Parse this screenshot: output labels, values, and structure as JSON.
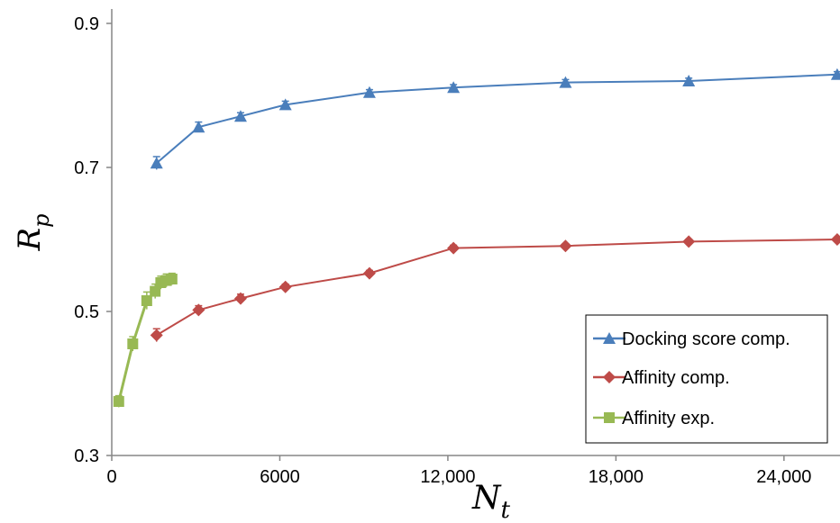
{
  "chart_data": {
    "type": "line",
    "title": "",
    "ylabel": "R",
    "ylabel_sub": "p",
    "xlabel": "N",
    "xlabel_sub": "t",
    "xlim": [
      0,
      26000
    ],
    "ylim": [
      0.3,
      0.92
    ],
    "x_ticks": [
      0,
      6000,
      12000,
      18000,
      24000
    ],
    "x_tick_labels": [
      "0",
      "6000",
      "12,000",
      "18,000",
      "24,000"
    ],
    "y_ticks": [
      0.3,
      0.5,
      0.7,
      0.9
    ],
    "y_tick_labels": [
      "0.3",
      "0.5",
      "0.7",
      "0.9"
    ],
    "grid": false,
    "legend_position": "bottom-right",
    "series": [
      {
        "name": "Docking score comp.",
        "color": "#4a7ebb",
        "marker": "triangle",
        "x": [
          1600,
          3100,
          4600,
          6200,
          9200,
          12200,
          16200,
          20600,
          25900
        ],
        "y": [
          0.706,
          0.756,
          0.771,
          0.787,
          0.804,
          0.811,
          0.818,
          0.82,
          0.829
        ],
        "err": [
          0.009,
          0.007,
          0.005,
          0.005,
          0.004,
          0.004,
          0.004,
          0.004,
          0.004
        ]
      },
      {
        "name": "Affinity comp.",
        "color": "#be4b48",
        "marker": "diamond",
        "x": [
          1600,
          3100,
          4600,
          6200,
          9200,
          12200,
          16200,
          20600,
          25900
        ],
        "y": [
          0.467,
          0.502,
          0.518,
          0.534,
          0.553,
          0.588,
          0.591,
          0.597,
          0.6
        ],
        "err": [
          0.009,
          0.006,
          0.006,
          0.004,
          0.004,
          0.004,
          0.003,
          0.003,
          0.003
        ]
      },
      {
        "name": "Affinity exp.",
        "color": "#98b954",
        "marker": "square",
        "x": [
          250,
          750,
          1250,
          1550,
          1750,
          1950,
          2150
        ],
        "y": [
          0.375,
          0.455,
          0.515,
          0.528,
          0.54,
          0.543,
          0.545
        ],
        "err": [
          0.008,
          0.01,
          0.012,
          0.01,
          0.009,
          0.009,
          0.008
        ]
      }
    ]
  }
}
